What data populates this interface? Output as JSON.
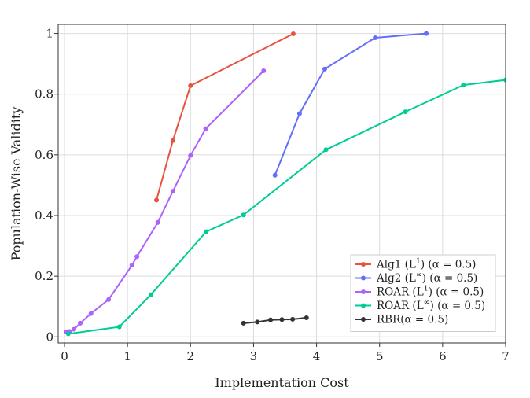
{
  "chart_data": {
    "type": "line",
    "title": "",
    "xlabel": "Implementation Cost",
    "ylabel": "Population-Wise Validity",
    "xlim": [
      -0.1,
      7
    ],
    "ylim": [
      -0.02,
      1.03
    ],
    "xticks": [
      0,
      1,
      2,
      3,
      4,
      5,
      6,
      7
    ],
    "xtick_labels": [
      "0",
      "1",
      "2",
      "3",
      "4",
      "5",
      "6",
      "7"
    ],
    "yticks": [
      0,
      0.2,
      0.4,
      0.6,
      0.8,
      1
    ],
    "ytick_labels": [
      "0",
      "0.2",
      "0.4",
      "0.6",
      "0.8",
      "1"
    ],
    "grid": true,
    "legend_position": "bottom-right",
    "series": [
      {
        "name": "Alg1 (L¹) (α = 0.5)",
        "label_base": "Alg1 (L",
        "label_sup": "1",
        "label_tail": ") (α = 0.5)",
        "color": "#e8533f",
        "points": [
          [
            1.46,
            0.451
          ],
          [
            1.72,
            0.647
          ],
          [
            2.0,
            0.828
          ],
          [
            3.63,
            0.999
          ]
        ]
      },
      {
        "name": "Alg2 (L∞) (α = 0.5)",
        "label_base": "Alg2 (L",
        "label_sup": "∞",
        "label_tail": ") (α = 0.5)",
        "color": "#636efa",
        "points": [
          [
            3.34,
            0.533
          ],
          [
            3.73,
            0.736
          ],
          [
            4.13,
            0.883
          ],
          [
            4.93,
            0.986
          ],
          [
            5.74,
            1.0
          ]
        ]
      },
      {
        "name": "ROAR (L¹) (α = 0.5)",
        "label_base": "ROAR (L",
        "label_sup": "1",
        "label_tail": ") (α = 0.5)",
        "color": "#ab63fa",
        "points": [
          [
            0.03,
            0.016
          ],
          [
            0.08,
            0.018
          ],
          [
            0.15,
            0.025
          ],
          [
            0.25,
            0.045
          ],
          [
            0.42,
            0.077
          ],
          [
            0.7,
            0.123
          ],
          [
            1.07,
            0.236
          ],
          [
            1.15,
            0.265
          ],
          [
            1.48,
            0.377
          ],
          [
            1.72,
            0.48
          ],
          [
            2.0,
            0.598
          ],
          [
            2.24,
            0.686
          ],
          [
            3.16,
            0.877
          ]
        ]
      },
      {
        "name": "ROAR (L∞) (α = 0.5)",
        "label_base": "ROAR (L",
        "label_sup": "∞",
        "label_tail": ") (α = 0.5)",
        "color": "#00cc96",
        "points": [
          [
            0.06,
            0.01
          ],
          [
            0.87,
            0.033
          ],
          [
            1.37,
            0.139
          ],
          [
            2.25,
            0.347
          ],
          [
            2.84,
            0.402
          ],
          [
            4.15,
            0.617
          ],
          [
            5.41,
            0.742
          ],
          [
            6.33,
            0.83
          ],
          [
            7.0,
            0.847
          ]
        ]
      },
      {
        "name": "RBR(α = 0.5)",
        "label_base": "RBR(α = 0.5)",
        "label_sup": "",
        "label_tail": "",
        "color": "#333333",
        "points": [
          [
            2.84,
            0.045
          ],
          [
            3.06,
            0.049
          ],
          [
            3.27,
            0.056
          ],
          [
            3.45,
            0.057
          ],
          [
            3.62,
            0.058
          ],
          [
            3.84,
            0.063
          ]
        ]
      }
    ]
  }
}
